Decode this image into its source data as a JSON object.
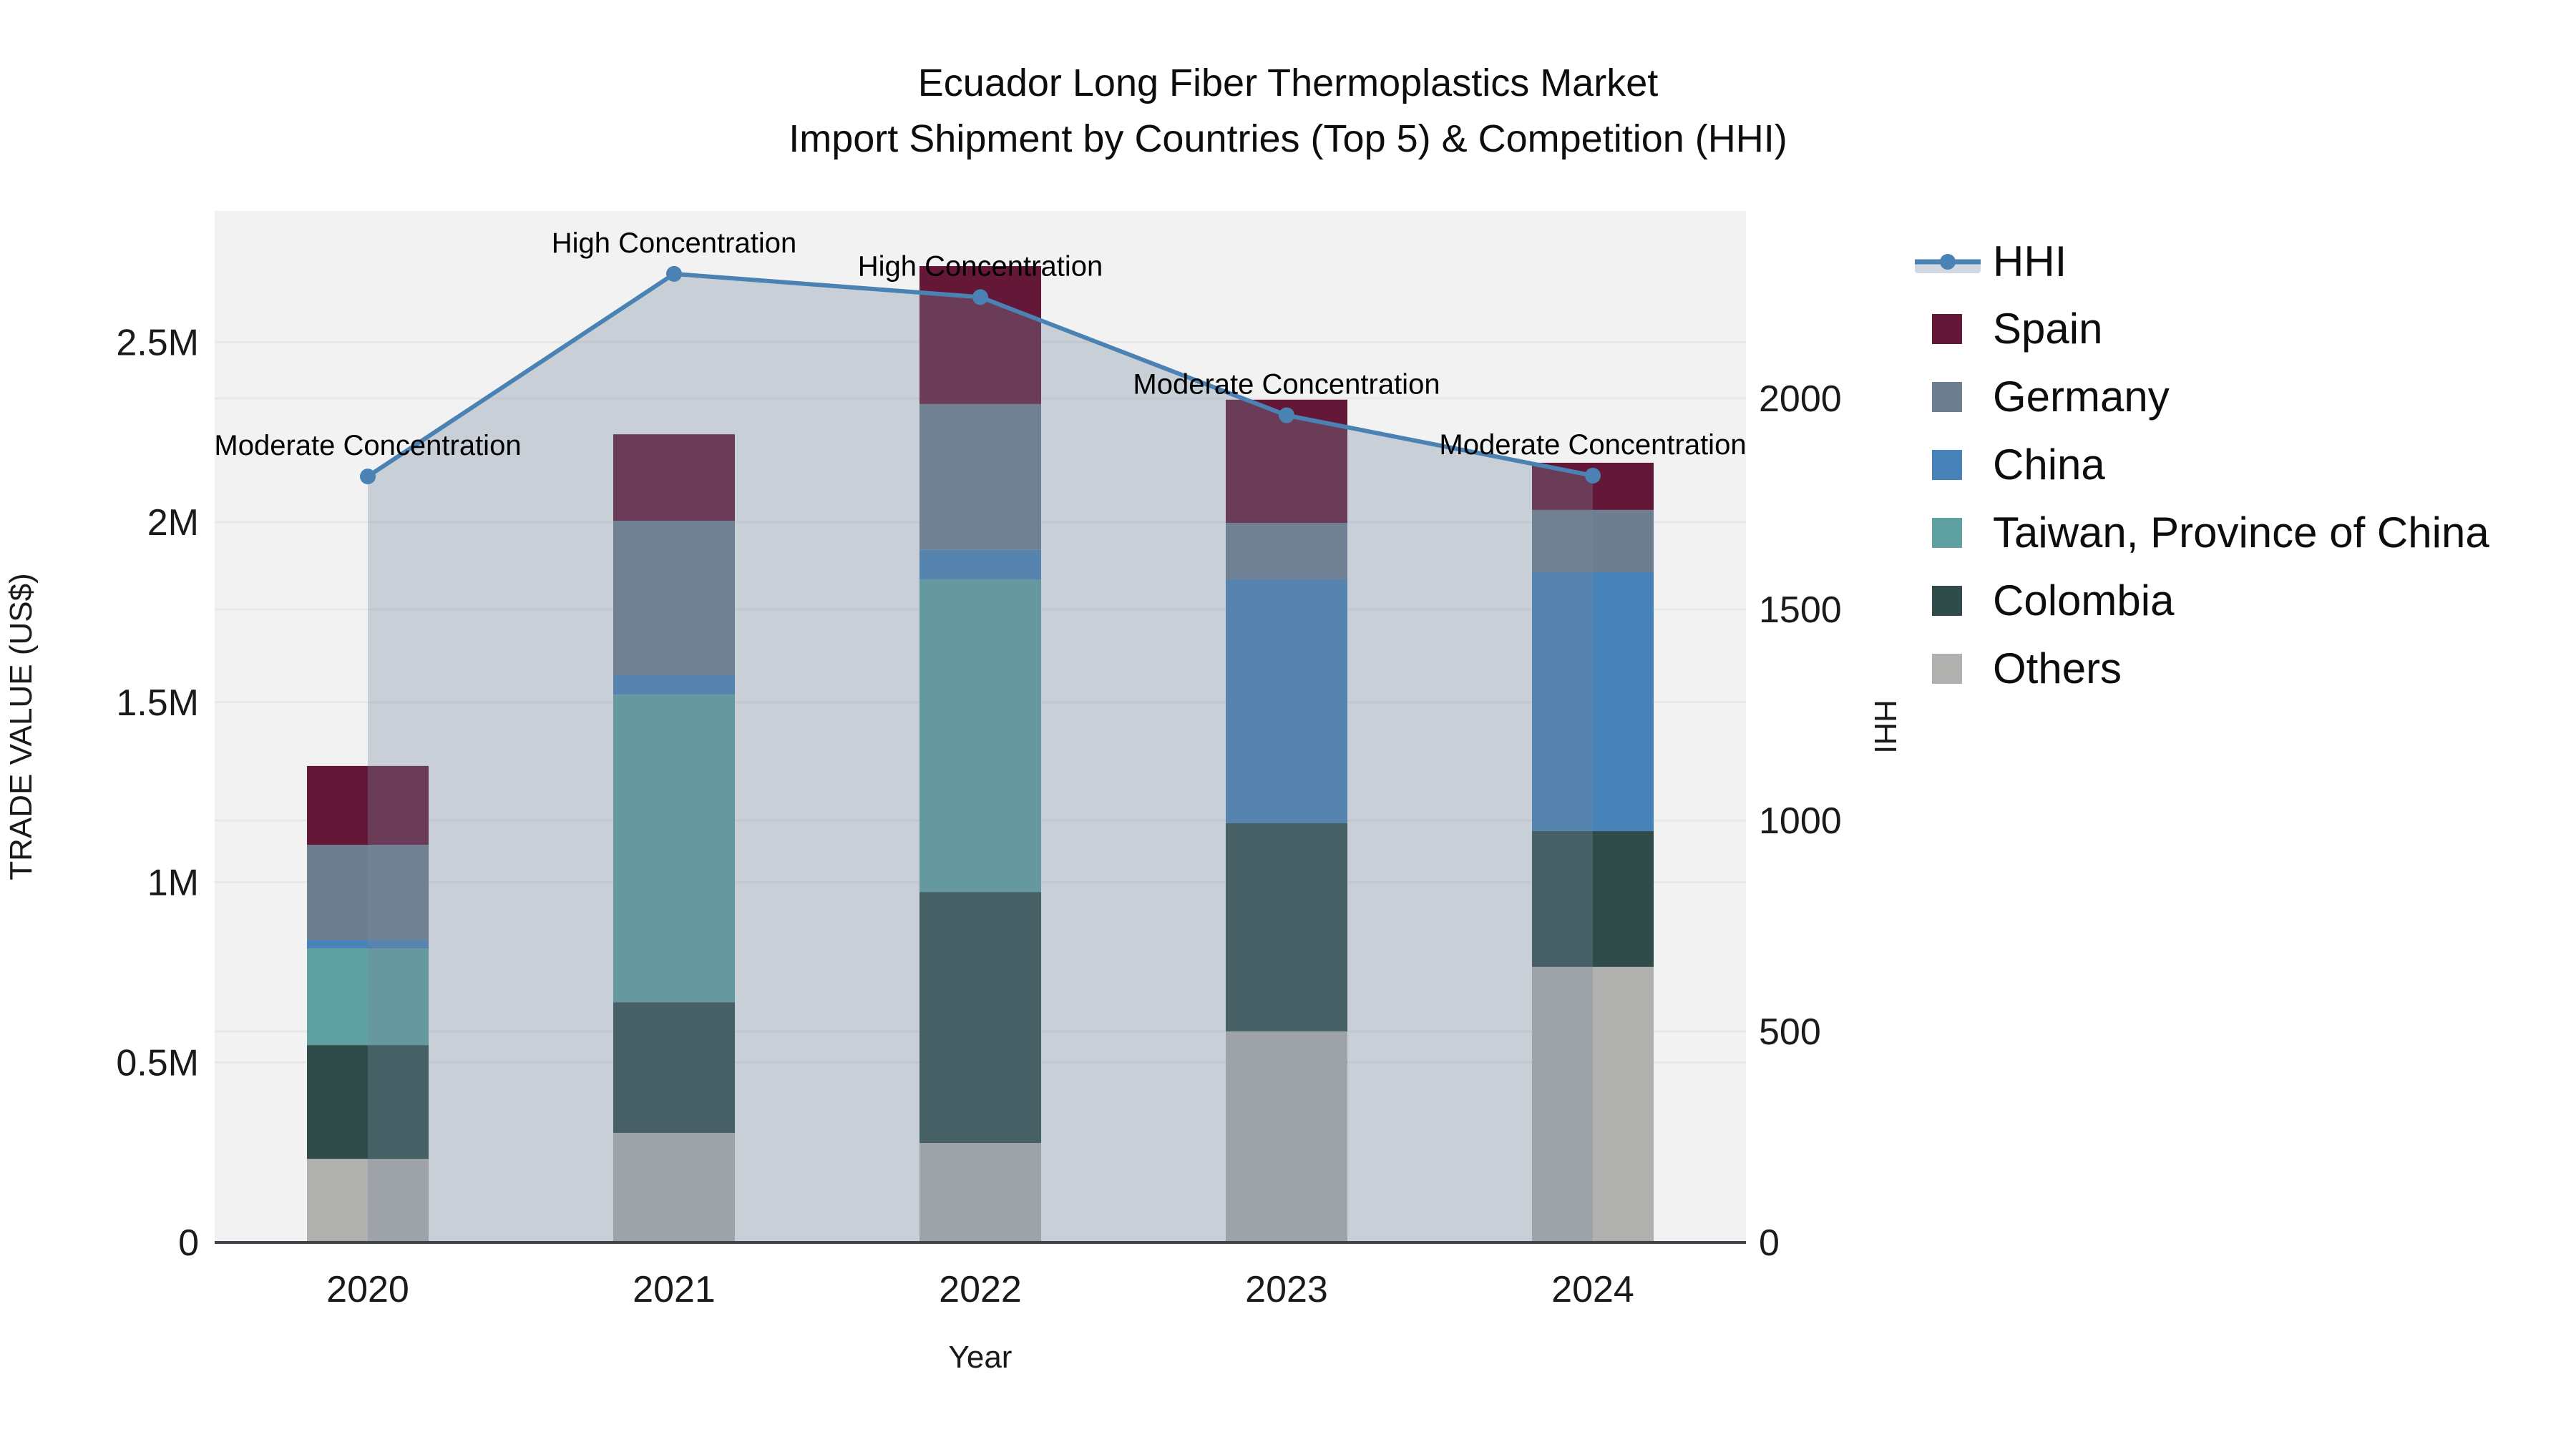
{
  "title": {
    "line1": "Ecuador Long Fiber Thermoplastics Market",
    "line2": "Import Shipment by Countries (Top 5) & Competition (HHI)"
  },
  "axes": {
    "x": {
      "title": "Year",
      "categories": [
        "2020",
        "2021",
        "2022",
        "2023",
        "2024"
      ]
    },
    "y_left": {
      "title": "TRADE VALUE (US$)",
      "ticks": [
        {
          "label": "0",
          "value": 0
        },
        {
          "label": "0.5M",
          "value": 500000
        },
        {
          "label": "1M",
          "value": 1000000
        },
        {
          "label": "1.5M",
          "value": 1500000
        },
        {
          "label": "2M",
          "value": 2000000
        },
        {
          "label": "2.5M",
          "value": 2500000
        }
      ],
      "max": 2864000
    },
    "y_right": {
      "title": "HHI",
      "ticks": [
        {
          "label": "0",
          "value": 0
        },
        {
          "label": "500",
          "value": 500
        },
        {
          "label": "1000",
          "value": 1000
        },
        {
          "label": "1500",
          "value": 1500
        },
        {
          "label": "2000",
          "value": 2000
        }
      ],
      "max": 2444
    }
  },
  "legend": {
    "items": [
      {
        "label": "HHI",
        "marker": "line",
        "color": "#4a82b4"
      },
      {
        "label": "Spain",
        "marker": "square",
        "color": "#651737"
      },
      {
        "label": "Germany",
        "marker": "square",
        "color": "#6d7e90"
      },
      {
        "label": "China",
        "marker": "square",
        "color": "#4782b8"
      },
      {
        "label": "Taiwan, Province of China",
        "marker": "square",
        "color": "#5fa0a1"
      },
      {
        "label": "Colombia",
        "marker": "square",
        "color": "#2f4c4a"
      },
      {
        "label": "Others",
        "marker": "square",
        "color": "#b0b0af"
      }
    ]
  },
  "chart_data": {
    "type": "bar+line",
    "bar_mode": "stacked",
    "categories": [
      "2020",
      "2021",
      "2022",
      "2023",
      "2024"
    ],
    "stack_order_bottom_to_top": [
      "Others",
      "Colombia",
      "Taiwan, Province of China",
      "China",
      "Germany",
      "Spain"
    ],
    "bar_series": [
      {
        "name": "Others",
        "color": "#b0b0af",
        "values_usd": [
          232000,
          304000,
          276000,
          586000,
          765000
        ]
      },
      {
        "name": "Colombia",
        "color": "#2f4c4a",
        "values_usd": [
          316000,
          363000,
          697000,
          578000,
          377000
        ]
      },
      {
        "name": "Taiwan, Province of China",
        "color": "#5fa0a1",
        "values_usd": [
          268000,
          854000,
          868000,
          0,
          0
        ]
      },
      {
        "name": "China",
        "color": "#4782b8",
        "values_usd": [
          24000,
          54000,
          82000,
          679000,
          719000
        ]
      },
      {
        "name": "Germany",
        "color": "#6d7e90",
        "values_usd": [
          264000,
          429000,
          405000,
          155000,
          173000
        ]
      },
      {
        "name": "Spain",
        "color": "#651737",
        "values_usd": [
          219000,
          240000,
          383000,
          342000,
          131000
        ]
      }
    ],
    "bar_totals_usd": [
      1323000,
      2244000,
      2711000,
      2340000,
      2165000
    ],
    "line_series": {
      "name": "HHI",
      "axis": "right",
      "color": "#4a82b4",
      "fill": "tozeroy",
      "fill_color": "rgba(119,138,159,0.33)",
      "values": [
        1815,
        2295,
        2240,
        1960,
        1817
      ]
    },
    "annotations": [
      {
        "category": "2020",
        "text": "Moderate Concentration"
      },
      {
        "category": "2021",
        "text": "High Concentration"
      },
      {
        "category": "2022",
        "text": "High Concentration"
      },
      {
        "category": "2023",
        "text": "Moderate Concentration"
      },
      {
        "category": "2024",
        "text": "Moderate Concentration"
      }
    ],
    "xlabel": "Year",
    "ylabel_left": "TRADE VALUE (US$)",
    "ylabel_right": "HHI",
    "ylim_left": [
      0,
      2864000
    ],
    "ylim_right": [
      0,
      2444
    ],
    "grid": true,
    "legend_position": "right"
  },
  "colors": {
    "plot_bg": "#f2f2f3",
    "grid": "#e7e8ea",
    "axis_line": "#3f454b",
    "fill_under_line": "rgba(119,138,159,0.33)",
    "hhi_line": "#4a82b4"
  }
}
